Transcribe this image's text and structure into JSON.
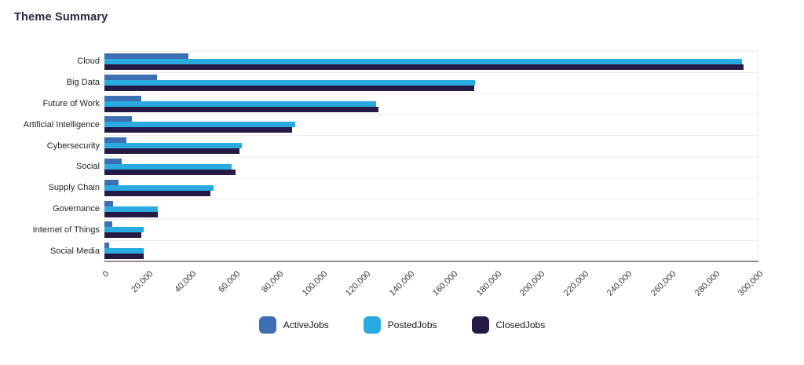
{
  "title": "Theme Summary",
  "chart_data": {
    "type": "bar",
    "orientation": "horizontal",
    "title": "Theme Summary",
    "categories": [
      "Cloud",
      "Big Data",
      "Future of Work",
      "Artificial Intelligence",
      "Cybersecurity",
      "Social",
      "Supply Chain",
      "Governance",
      "Internet of Things",
      "Social Media"
    ],
    "series": [
      {
        "name": "ActiveJobs",
        "color": "#3D70B2",
        "values": [
          38500,
          24000,
          17000,
          12500,
          10000,
          8000,
          6500,
          4000,
          3500,
          2300
        ]
      },
      {
        "name": "PostedJobs",
        "color": "#29ABE2",
        "values": [
          292500,
          170000,
          124500,
          87500,
          63000,
          58500,
          50000,
          24500,
          18000,
          18000
        ]
      },
      {
        "name": "ClosedJobs",
        "color": "#241A45",
        "values": [
          293000,
          169500,
          125500,
          86000,
          62000,
          60000,
          48500,
          24500,
          17000,
          18000
        ]
      }
    ],
    "x_axis": {
      "min": 0,
      "max": 300000,
      "tick_step": 20000,
      "tick_labels": [
        "0",
        "20,000",
        "40,000",
        "60,000",
        "80,000",
        "100,000",
        "120,000",
        "140,000",
        "160,000",
        "180,000",
        "200,000",
        "220,000",
        "240,000",
        "260,000",
        "280,000",
        "300,000"
      ]
    },
    "legend": [
      "ActiveJobs",
      "PostedJobs",
      "ClosedJobs"
    ],
    "legend_position": "bottom",
    "grid": "row-separators"
  },
  "colors": {
    "title_text": "#272741",
    "category_text": "#21272a",
    "tick_text": "#3a3a3a",
    "axis_line": "#8f8f8f",
    "separator_line": "#ededed",
    "background": "#ffffff"
  }
}
